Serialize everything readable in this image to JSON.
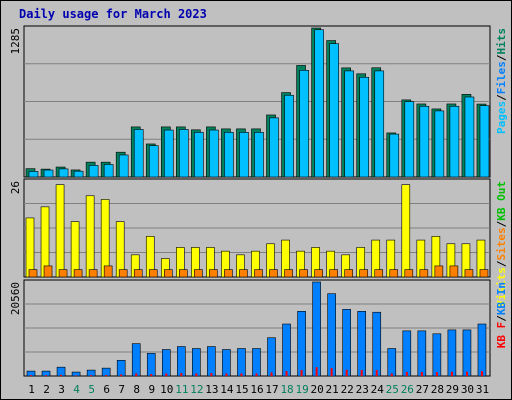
{
  "chart_data": {
    "type": "bar",
    "title": "Daily usage for March 2023",
    "categories": [
      "1",
      "2",
      "3",
      "4",
      "5",
      "6",
      "7",
      "8",
      "9",
      "10",
      "11",
      "12",
      "13",
      "14",
      "15",
      "16",
      "17",
      "18",
      "19",
      "20",
      "21",
      "22",
      "23",
      "24",
      "25",
      "26",
      "27",
      "28",
      "29",
      "30",
      "31"
    ],
    "weekend_days": [
      4,
      5,
      11,
      12,
      18,
      19,
      25,
      26
    ],
    "colors": {
      "hits": "#00805c",
      "files": "#00c0ff",
      "pages": "#00c0ff",
      "visits": "#ffff00",
      "sites": "#ff8000",
      "kb_in": "#0080ff",
      "kb_out": "#00c000",
      "kb_f": "#ff0000",
      "weekday_label": "#000000",
      "weekend_label": "#00805c"
    },
    "panels": [
      {
        "id": "top",
        "ymax_label": "1285",
        "ylim": [
          0,
          1285
        ],
        "legend": [
          {
            "text": "Pages",
            "color": "#00c0ff"
          },
          {
            "text": "/",
            "color": "#000000"
          },
          {
            "text": "Files",
            "color": "#0080ff"
          },
          {
            "text": "/",
            "color": "#000000"
          },
          {
            "text": "Hits",
            "color": "#00805c"
          }
        ],
        "series": [
          {
            "name": "Hits",
            "values": [
              72,
              68,
              86,
              61,
              128,
              128,
              214,
              432,
              285,
              432,
              432,
              407,
              432,
              415,
              415,
              415,
              535,
              728,
              962,
              1285,
              1177,
              941,
              890,
              942,
              380,
              665,
              630,
              587,
              630,
              713,
              629
            ]
          },
          {
            "name": "Files",
            "values": [
              48,
              60,
              70,
              50,
              100,
              108,
              190,
              410,
              270,
              405,
              410,
              385,
              405,
              385,
              385,
              385,
              510,
              705,
              920,
              1270,
              1150,
              915,
              860,
              915,
              370,
              650,
              610,
              570,
              610,
              690,
              615
            ]
          }
        ]
      },
      {
        "id": "middle",
        "ymax_label": "26",
        "ylim": [
          0,
          26
        ],
        "legend": [
          {
            "text": "Visits",
            "color": "#ffff00"
          },
          {
            "text": "/",
            "color": "#000000"
          },
          {
            "text": "Sites",
            "color": "#ff8000"
          },
          {
            "text": "/",
            "color": "#000000"
          },
          {
            "text": "KB Out",
            "color": "#00c000"
          }
        ],
        "series": [
          {
            "name": "Visits",
            "values": [
              16,
              19,
              25,
              15,
              22,
              21,
              15,
              6,
              11,
              5,
              8,
              8,
              8,
              7,
              6,
              7,
              9,
              10,
              7,
              8,
              7,
              6,
              8,
              10,
              10,
              25,
              10,
              11,
              9,
              9,
              10
            ]
          },
          {
            "name": "Sites",
            "values": [
              2,
              3,
              2,
              2,
              2,
              3,
              2,
              2,
              2,
              2,
              2,
              2,
              2,
              2,
              2,
              2,
              2,
              2,
              2,
              2,
              2,
              2,
              2,
              2,
              2,
              2,
              2,
              3,
              3,
              2,
              2
            ]
          }
        ]
      },
      {
        "id": "bottom",
        "ymax_label": "20560",
        "ylim": [
          0,
          20560
        ],
        "legend": [
          {
            "text": "KB F",
            "color": "#ff0000"
          },
          {
            "text": "/",
            "color": "#000000"
          },
          {
            "text": "KB In",
            "color": "#0080ff"
          }
        ],
        "series": [
          {
            "name": "KB In",
            "values": [
              1070,
              1070,
              1930,
              860,
              1290,
              1720,
              3430,
              7080,
              4940,
              5790,
              6440,
              6010,
              6440,
              5790,
              6010,
              6010,
              8370,
              11370,
              14150,
              20560,
              18000,
              14580,
              14150,
              13950,
              6010,
              9870,
              9870,
              9230,
              10080,
              10080,
              11370
            ]
          },
          {
            "name": "KB F",
            "values": [
              180,
              180,
              260,
              130,
              180,
              220,
              350,
              570,
              430,
              560,
              640,
              570,
              640,
              560,
              570,
              570,
              780,
              1070,
              1290,
              1930,
              1720,
              1350,
              1290,
              1290,
              560,
              900,
              900,
              860,
              940,
              940,
              1070
            ]
          }
        ]
      }
    ]
  }
}
